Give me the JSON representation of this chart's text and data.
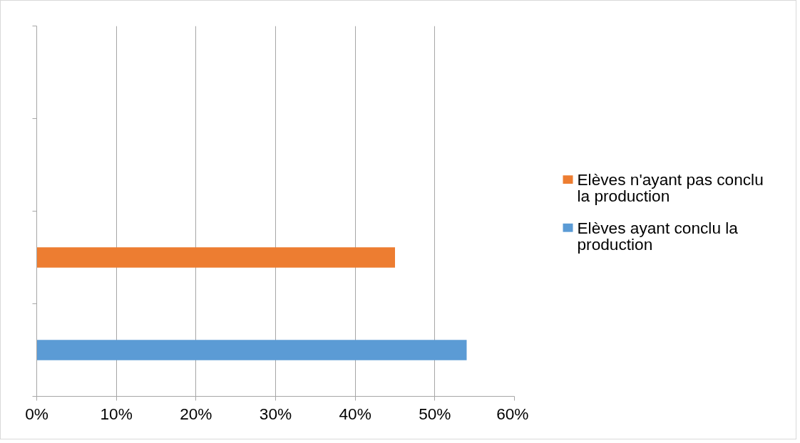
{
  "chart_data": {
    "type": "bar",
    "orientation": "horizontal",
    "categories": [
      null,
      null,
      null,
      null
    ],
    "series": [
      {
        "name": "Elèves n'ayant pas conclu la production",
        "color": "#ed7d31",
        "values": [
          null,
          null,
          45,
          null
        ]
      },
      {
        "name": "Elèves ayant conclu la production",
        "color": "#5b9bd5",
        "values": [
          null,
          null,
          null,
          54
        ]
      }
    ],
    "xlim": [
      0,
      60
    ],
    "xticks": [
      {
        "value": 0,
        "label": "0%"
      },
      {
        "value": 10,
        "label": "10%"
      },
      {
        "value": 20,
        "label": "20%"
      },
      {
        "value": 30,
        "label": "30%"
      },
      {
        "value": 40,
        "label": "40%"
      },
      {
        "value": 50,
        "label": "50%"
      },
      {
        "value": 60,
        "label": "60%"
      }
    ],
    "grid": "x",
    "legend": "right",
    "tick_labels": "x"
  }
}
